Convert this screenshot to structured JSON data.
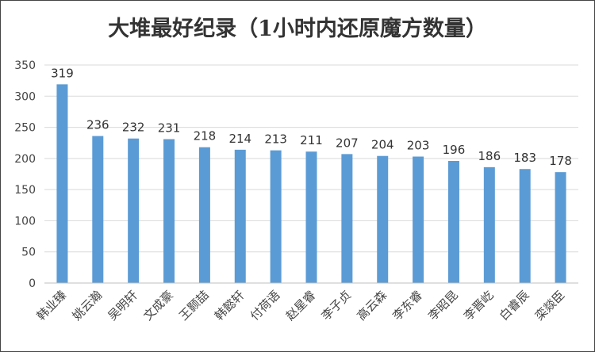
{
  "chart_data": {
    "type": "bar",
    "title": "大堆最好纪录（1小时内还原魔方数量）",
    "categories": [
      "韩业臻",
      "姚云瀚",
      "吴明轩",
      "文成豪",
      "王颢喆",
      "韩懿轩",
      "付荷语",
      "赵星睿",
      "李子贞",
      "高云森",
      "李东睿",
      "李昭昆",
      "李晋屹",
      "白睿辰",
      "栾燚臣"
    ],
    "values": [
      319,
      236,
      232,
      231,
      218,
      214,
      213,
      211,
      207,
      204,
      203,
      196,
      186,
      183,
      178
    ],
    "ylim": [
      0,
      350
    ],
    "yticks": [
      0,
      50,
      100,
      150,
      200,
      250,
      300,
      350
    ],
    "xlabel": "",
    "ylabel": "",
    "grid": true,
    "legend": "none",
    "bar_color": "#5B9BD5"
  }
}
